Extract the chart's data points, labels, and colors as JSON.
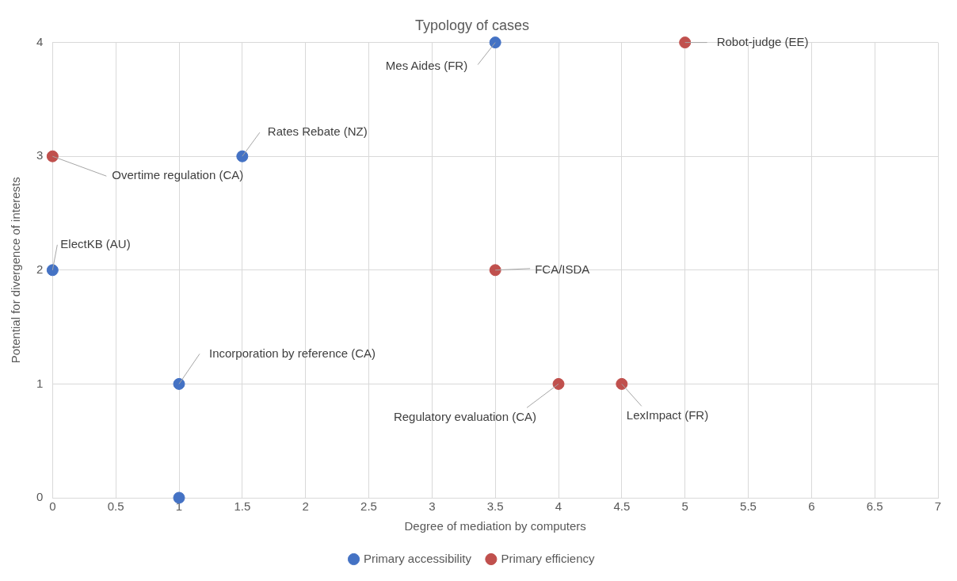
{
  "chart_data": {
    "type": "scatter",
    "title": "Typology of cases",
    "xlabel": "Degree of mediation by computers",
    "ylabel": "Potential for divergence of interests",
    "series": [
      {
        "name": "Primary accessibility",
        "color": "#4472c4",
        "x": [
          3.5,
          1.5,
          0,
          1,
          1
        ],
        "values": [
          4,
          3,
          2,
          1,
          0
        ]
      },
      {
        "name": "Primary efficiency",
        "color": "#c0504d",
        "x": [
          5,
          0,
          3.5,
          4,
          4.5
        ],
        "values": [
          4,
          3,
          2,
          1,
          1
        ]
      }
    ],
    "xlim": [
      0,
      7
    ],
    "xticks": [
      0,
      0.5,
      1,
      1.5,
      2,
      2.5,
      3,
      3.5,
      4,
      4.5,
      5,
      5.5,
      6,
      6.5,
      7
    ],
    "ylim": [
      0,
      4
    ],
    "yticks": [
      0,
      1,
      2,
      3,
      4
    ],
    "grid": true,
    "legend": "bottom",
    "marker": "circle",
    "annotations": [
      {
        "text": "Mes Aides (FR)",
        "x": 3.5,
        "y": 4
      },
      {
        "text": "Rates Rebate (NZ)",
        "x": 1.5,
        "y": 3
      },
      {
        "text": "ElectKB (AU)",
        "x": 0,
        "y": 2
      },
      {
        "text": "Incorporation by reference (CA)",
        "x": 1,
        "y": 1
      },
      {
        "text": "Robot-judge (EE)",
        "x": 5,
        "y": 4
      },
      {
        "text": "Overtime regulation (CA)",
        "x": 0,
        "y": 3
      },
      {
        "text": "FCA/ISDA",
        "x": 3.5,
        "y": 2
      },
      {
        "text": "Regulatory evaluation (CA)",
        "x": 4,
        "y": 1
      },
      {
        "text": "LexImpact (FR)",
        "x": 4.5,
        "y": 1
      }
    ]
  }
}
